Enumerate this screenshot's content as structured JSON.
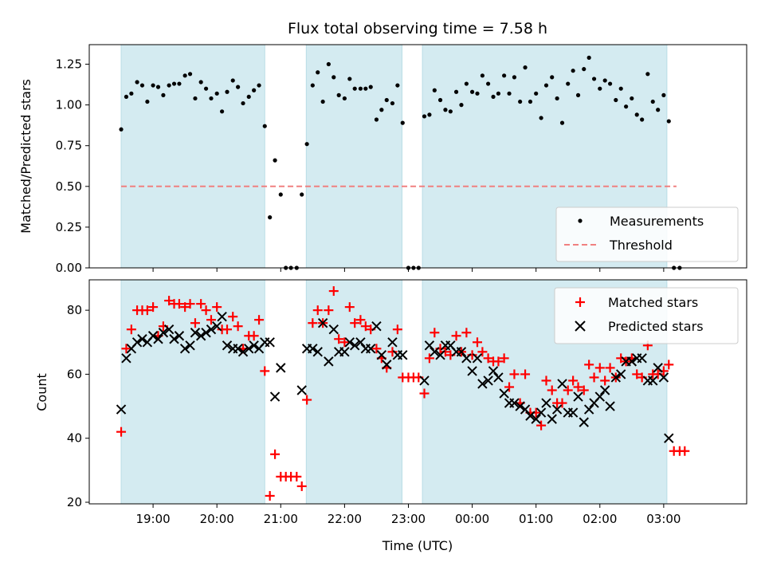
{
  "chart_data": {
    "type": "scatter",
    "title": "Flux total observing time = 7.58 h",
    "xlabel": "Time (UTC)",
    "x_unit": "hours since 00:00 of first day (19:00 = 19, 03:00 = 27)",
    "xlim": [
      18.0,
      28.3
    ],
    "xtick_values": [
      19,
      20,
      21,
      22,
      23,
      24,
      25,
      26,
      27
    ],
    "xtick_labels": [
      "19:00",
      "20:00",
      "21:00",
      "22:00",
      "23:00",
      "00:00",
      "01:00",
      "02:00",
      "03:00"
    ],
    "observing_windows": [
      [
        18.5,
        20.75
      ],
      [
        21.4,
        22.9
      ],
      [
        23.22,
        27.05
      ]
    ],
    "window_color": "#d4ebf1",
    "top": {
      "ylabel": "Matched/Predicted stars",
      "ylim": [
        0,
        1.37
      ],
      "ytick_values": [
        0,
        0.25,
        0.5,
        0.75,
        1.0,
        1.25
      ],
      "ytick_labels": [
        "0.00",
        "0.25",
        "0.50",
        "0.75",
        "1.00",
        "1.25"
      ],
      "threshold": 0.5,
      "threshold_xrange": [
        18.5,
        27.2
      ],
      "threshold_color": "#f08080",
      "legend": [
        "Measurements",
        "Threshold"
      ],
      "measurements": [
        [
          18.5,
          0.85
        ],
        [
          18.58,
          1.05
        ],
        [
          18.66,
          1.07
        ],
        [
          18.75,
          1.14
        ],
        [
          18.83,
          1.12
        ],
        [
          18.91,
          1.02
        ],
        [
          19.0,
          1.12
        ],
        [
          19.08,
          1.11
        ],
        [
          19.16,
          1.06
        ],
        [
          19.25,
          1.12
        ],
        [
          19.33,
          1.13
        ],
        [
          19.41,
          1.13
        ],
        [
          19.5,
          1.18
        ],
        [
          19.58,
          1.19
        ],
        [
          19.66,
          1.04
        ],
        [
          19.75,
          1.14
        ],
        [
          19.83,
          1.1
        ],
        [
          19.91,
          1.04
        ],
        [
          20.0,
          1.07
        ],
        [
          20.08,
          0.96
        ],
        [
          20.16,
          1.08
        ],
        [
          20.25,
          1.15
        ],
        [
          20.33,
          1.11
        ],
        [
          20.41,
          1.01
        ],
        [
          20.5,
          1.05
        ],
        [
          20.58,
          1.09
        ],
        [
          20.66,
          1.12
        ],
        [
          20.75,
          0.87
        ],
        [
          20.83,
          0.31
        ],
        [
          20.91,
          0.66
        ],
        [
          21.0,
          0.45
        ],
        [
          21.08,
          0.0
        ],
        [
          21.16,
          0.0
        ],
        [
          21.25,
          0.0
        ],
        [
          21.33,
          0.45
        ],
        [
          21.41,
          0.76
        ],
        [
          21.5,
          1.12
        ],
        [
          21.58,
          1.2
        ],
        [
          21.66,
          1.02
        ],
        [
          21.75,
          1.25
        ],
        [
          21.83,
          1.17
        ],
        [
          21.91,
          1.06
        ],
        [
          22.0,
          1.04
        ],
        [
          22.08,
          1.16
        ],
        [
          22.16,
          1.1
        ],
        [
          22.25,
          1.1
        ],
        [
          22.33,
          1.1
        ],
        [
          22.41,
          1.11
        ],
        [
          22.5,
          0.91
        ],
        [
          22.58,
          0.97
        ],
        [
          22.66,
          1.03
        ],
        [
          22.75,
          1.01
        ],
        [
          22.83,
          1.12
        ],
        [
          22.91,
          0.89
        ],
        [
          23.0,
          0.0
        ],
        [
          23.08,
          0.0
        ],
        [
          23.16,
          0.0
        ],
        [
          23.25,
          0.93
        ],
        [
          23.33,
          0.94
        ],
        [
          23.41,
          1.09
        ],
        [
          23.5,
          1.03
        ],
        [
          23.58,
          0.97
        ],
        [
          23.66,
          0.96
        ],
        [
          23.75,
          1.08
        ],
        [
          23.83,
          1.0
        ],
        [
          23.91,
          1.13
        ],
        [
          24.0,
          1.08
        ],
        [
          24.08,
          1.07
        ],
        [
          24.16,
          1.18
        ],
        [
          24.25,
          1.13
        ],
        [
          24.33,
          1.05
        ],
        [
          24.41,
          1.07
        ],
        [
          24.5,
          1.18
        ],
        [
          24.58,
          1.07
        ],
        [
          24.66,
          1.17
        ],
        [
          24.75,
          1.02
        ],
        [
          24.83,
          1.23
        ],
        [
          24.91,
          1.02
        ],
        [
          25.0,
          1.07
        ],
        [
          25.08,
          0.92
        ],
        [
          25.16,
          1.12
        ],
        [
          25.25,
          1.17
        ],
        [
          25.33,
          1.04
        ],
        [
          25.41,
          0.89
        ],
        [
          25.5,
          1.13
        ],
        [
          25.58,
          1.21
        ],
        [
          25.66,
          1.06
        ],
        [
          25.75,
          1.22
        ],
        [
          25.83,
          1.29
        ],
        [
          25.91,
          1.16
        ],
        [
          26.0,
          1.1
        ],
        [
          26.08,
          1.15
        ],
        [
          26.16,
          1.13
        ],
        [
          26.25,
          1.03
        ],
        [
          26.33,
          1.1
        ],
        [
          26.41,
          0.99
        ],
        [
          26.5,
          1.04
        ],
        [
          26.58,
          0.94
        ],
        [
          26.66,
          0.91
        ],
        [
          26.75,
          1.19
        ],
        [
          26.83,
          1.02
        ],
        [
          26.91,
          0.97
        ],
        [
          27.0,
          1.06
        ],
        [
          27.08,
          0.9
        ],
        [
          27.16,
          0.0
        ],
        [
          27.25,
          0.0
        ]
      ]
    },
    "bottom": {
      "ylabel": "Count",
      "ylim": [
        19.5,
        89.5
      ],
      "ytick_values": [
        20,
        40,
        60,
        80
      ],
      "ytick_labels": [
        "20",
        "40",
        "60",
        "80"
      ],
      "legend": [
        "Matched stars",
        "Predicted stars"
      ],
      "matched_color": "#ff0000",
      "predicted_color": "#000000",
      "matched": [
        [
          18.5,
          42
        ],
        [
          18.58,
          68
        ],
        [
          18.66,
          74
        ],
        [
          18.75,
          80
        ],
        [
          18.83,
          80
        ],
        [
          18.91,
          80
        ],
        [
          19.0,
          81
        ],
        [
          19.08,
          72
        ],
        [
          19.16,
          75
        ],
        [
          19.25,
          83
        ],
        [
          19.33,
          82
        ],
        [
          19.41,
          82
        ],
        [
          19.5,
          81
        ],
        [
          19.58,
          82
        ],
        [
          19.66,
          76
        ],
        [
          19.75,
          82
        ],
        [
          19.83,
          80
        ],
        [
          19.91,
          77
        ],
        [
          20.0,
          81
        ],
        [
          20.08,
          74
        ],
        [
          20.16,
          74
        ],
        [
          20.25,
          78
        ],
        [
          20.33,
          75
        ],
        [
          20.41,
          68
        ],
        [
          20.5,
          72
        ],
        [
          20.58,
          72
        ],
        [
          20.66,
          77
        ],
        [
          20.75,
          61
        ],
        [
          20.83,
          22
        ],
        [
          20.91,
          35
        ],
        [
          21.0,
          28
        ],
        [
          21.08,
          28
        ],
        [
          21.16,
          28
        ],
        [
          21.25,
          28
        ],
        [
          21.33,
          25
        ],
        [
          21.41,
          52
        ],
        [
          21.5,
          76
        ],
        [
          21.58,
          80
        ],
        [
          21.66,
          76
        ],
        [
          21.75,
          80
        ],
        [
          21.83,
          86
        ],
        [
          21.91,
          71
        ],
        [
          22.0,
          70
        ],
        [
          22.08,
          81
        ],
        [
          22.16,
          76
        ],
        [
          22.25,
          77
        ],
        [
          22.33,
          75
        ],
        [
          22.41,
          74
        ],
        [
          22.5,
          68
        ],
        [
          22.58,
          65
        ],
        [
          22.66,
          62
        ],
        [
          22.75,
          67
        ],
        [
          22.83,
          74
        ],
        [
          22.91,
          59
        ],
        [
          23.0,
          59
        ],
        [
          23.08,
          59
        ],
        [
          23.16,
          59
        ],
        [
          23.25,
          54
        ],
        [
          23.33,
          65
        ],
        [
          23.41,
          73
        ],
        [
          23.5,
          68
        ],
        [
          23.58,
          67
        ],
        [
          23.66,
          66
        ],
        [
          23.75,
          72
        ],
        [
          23.83,
          67
        ],
        [
          23.91,
          73
        ],
        [
          24.0,
          66
        ],
        [
          24.08,
          70
        ],
        [
          24.16,
          67
        ],
        [
          24.25,
          65
        ],
        [
          24.33,
          64
        ],
        [
          24.41,
          64
        ],
        [
          24.5,
          65
        ],
        [
          24.58,
          56
        ],
        [
          24.66,
          60
        ],
        [
          24.75,
          51
        ],
        [
          24.83,
          60
        ],
        [
          24.91,
          48
        ],
        [
          25.0,
          48
        ],
        [
          25.08,
          44
        ],
        [
          25.16,
          58
        ],
        [
          25.25,
          55
        ],
        [
          25.33,
          51
        ],
        [
          25.41,
          51
        ],
        [
          25.5,
          55
        ],
        [
          25.58,
          58
        ],
        [
          25.66,
          56
        ],
        [
          25.75,
          55
        ],
        [
          25.83,
          63
        ],
        [
          25.91,
          59
        ],
        [
          26.0,
          62
        ],
        [
          26.08,
          58
        ],
        [
          26.16,
          62
        ],
        [
          26.25,
          59
        ],
        [
          26.33,
          65
        ],
        [
          26.41,
          64
        ],
        [
          26.5,
          65
        ],
        [
          26.58,
          60
        ],
        [
          26.66,
          59
        ],
        [
          26.75,
          69
        ],
        [
          26.83,
          60
        ],
        [
          26.91,
          60
        ],
        [
          27.0,
          61
        ],
        [
          27.08,
          63
        ],
        [
          27.16,
          36
        ],
        [
          27.25,
          36
        ],
        [
          27.33,
          36
        ]
      ],
      "predicted": [
        [
          18.5,
          49
        ],
        [
          18.58,
          65
        ],
        [
          18.66,
          68
        ],
        [
          18.75,
          70
        ],
        [
          18.83,
          71
        ],
        [
          18.91,
          70
        ],
        [
          19.0,
          72
        ],
        [
          19.08,
          71
        ],
        [
          19.16,
          73
        ],
        [
          19.25,
          74
        ],
        [
          19.33,
          71
        ],
        [
          19.41,
          72
        ],
        [
          19.5,
          68
        ],
        [
          19.58,
          69
        ],
        [
          19.66,
          73
        ],
        [
          19.75,
          72
        ],
        [
          19.83,
          73
        ],
        [
          19.91,
          74
        ],
        [
          20.0,
          75
        ],
        [
          20.08,
          78
        ],
        [
          20.16,
          69
        ],
        [
          20.25,
          68
        ],
        [
          20.33,
          68
        ],
        [
          20.41,
          67
        ],
        [
          20.5,
          68
        ],
        [
          20.58,
          69
        ],
        [
          20.66,
          68
        ],
        [
          20.75,
          70
        ],
        [
          20.83,
          70
        ],
        [
          20.91,
          53
        ],
        [
          21.0,
          62
        ],
        [
          21.33,
          55
        ],
        [
          21.41,
          68
        ],
        [
          21.5,
          68
        ],
        [
          21.58,
          67
        ],
        [
          21.66,
          76
        ],
        [
          21.75,
          64
        ],
        [
          21.83,
          74
        ],
        [
          21.91,
          67
        ],
        [
          22.0,
          67
        ],
        [
          22.08,
          70
        ],
        [
          22.16,
          69
        ],
        [
          22.25,
          70
        ],
        [
          22.33,
          68
        ],
        [
          22.41,
          68
        ],
        [
          22.5,
          75
        ],
        [
          22.58,
          66
        ],
        [
          22.66,
          63
        ],
        [
          22.75,
          70
        ],
        [
          22.83,
          66
        ],
        [
          22.91,
          66
        ],
        [
          23.25,
          58
        ],
        [
          23.33,
          69
        ],
        [
          23.41,
          67
        ],
        [
          23.5,
          66
        ],
        [
          23.58,
          69
        ],
        [
          23.66,
          69
        ],
        [
          23.75,
          67
        ],
        [
          23.83,
          67
        ],
        [
          23.91,
          65
        ],
        [
          24.0,
          61
        ],
        [
          24.08,
          65
        ],
        [
          24.16,
          57
        ],
        [
          24.25,
          58
        ],
        [
          24.33,
          61
        ],
        [
          24.41,
          59
        ],
        [
          24.5,
          54
        ],
        [
          24.58,
          51
        ],
        [
          24.66,
          51
        ],
        [
          24.75,
          50
        ],
        [
          24.83,
          49
        ],
        [
          24.91,
          47
        ],
        [
          25.0,
          46
        ],
        [
          25.08,
          48
        ],
        [
          25.16,
          51
        ],
        [
          25.25,
          46
        ],
        [
          25.33,
          49
        ],
        [
          25.41,
          57
        ],
        [
          25.5,
          48
        ],
        [
          25.58,
          48
        ],
        [
          25.66,
          53
        ],
        [
          25.75,
          45
        ],
        [
          25.83,
          49
        ],
        [
          25.91,
          51
        ],
        [
          26.0,
          53
        ],
        [
          26.08,
          55
        ],
        [
          26.16,
          50
        ],
        [
          26.25,
          59
        ],
        [
          26.33,
          60
        ],
        [
          26.41,
          64
        ],
        [
          26.5,
          64
        ],
        [
          26.58,
          65
        ],
        [
          26.66,
          65
        ],
        [
          26.75,
          58
        ],
        [
          26.83,
          58
        ],
        [
          26.91,
          62
        ],
        [
          27.0,
          59
        ],
        [
          27.08,
          40
        ]
      ]
    }
  }
}
